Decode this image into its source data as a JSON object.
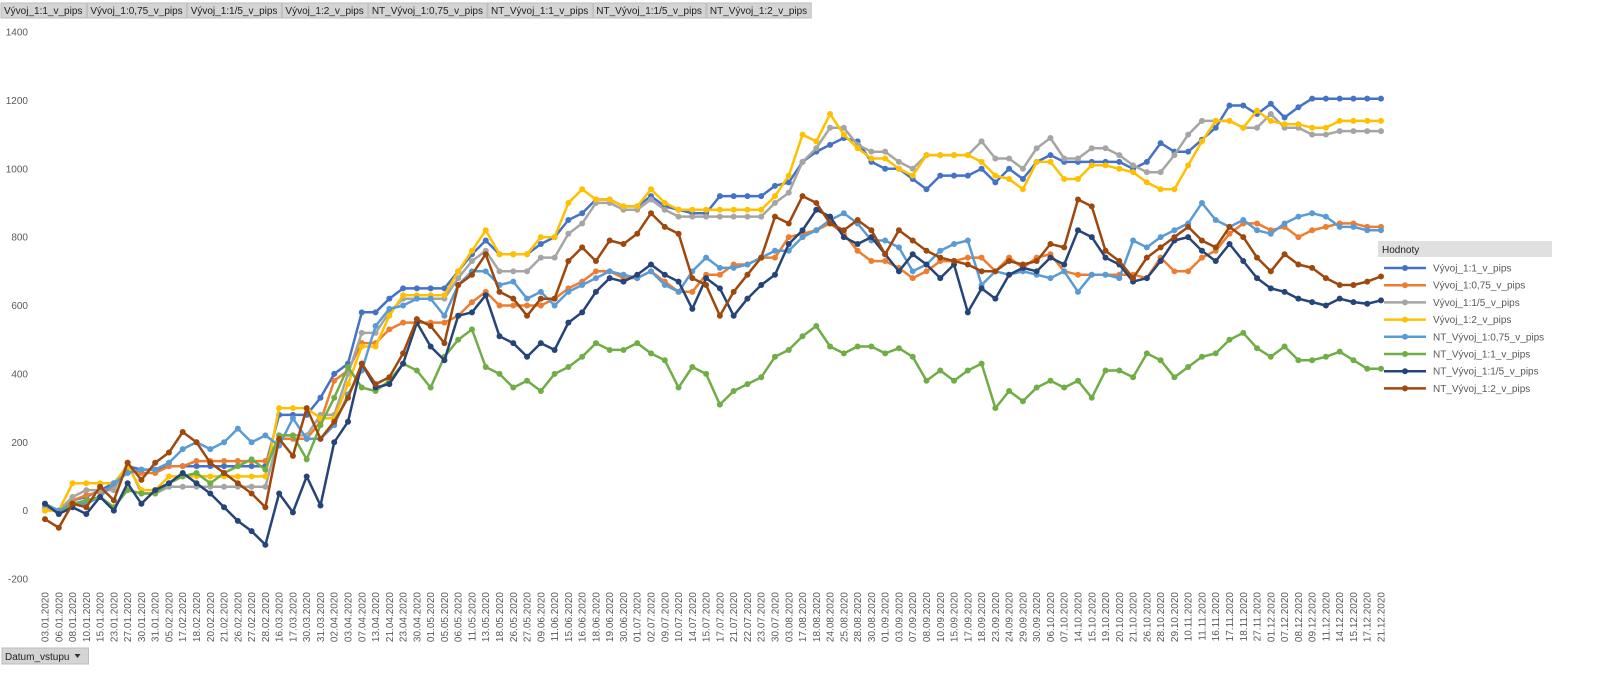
{
  "chart_data": {
    "type": "line",
    "legend_title": "Hodnoty",
    "legend_position": "right",
    "axis_field": "Datum_vstupu",
    "grid": false,
    "ylim": [
      -200,
      1400
    ],
    "yticks": [
      -200,
      0,
      200,
      400,
      600,
      800,
      1000,
      1200,
      1400
    ],
    "categories": [
      "03.01.2020",
      "06.01.2020",
      "08.01.2020",
      "10.01.2020",
      "15.01.2020",
      "23.01.2020",
      "27.01.2020",
      "30.01.2020",
      "31.01.2020",
      "05.02.2020",
      "17.02.2020",
      "18.02.2020",
      "20.02.2020",
      "21.02.2020",
      "26.02.2020",
      "27.02.2020",
      "28.02.2020",
      "16.03.2020",
      "17.03.2020",
      "30.03.2020",
      "31.03.2020",
      "02.04.2020",
      "03.04.2020",
      "07.04.2020",
      "13.04.2020",
      "21.04.2020",
      "23.04.2020",
      "30.04.2020",
      "01.05.2020",
      "05.05.2020",
      "06.05.2020",
      "11.05.2020",
      "13.05.2020",
      "18.05.2020",
      "26.05.2020",
      "27.05.2020",
      "09.06.2020",
      "11.06.2020",
      "15.06.2020",
      "16.06.2020",
      "18.06.2020",
      "19.06.2020",
      "30.06.2020",
      "01.07.2020",
      "02.07.2020",
      "09.07.2020",
      "10.07.2020",
      "14.07.2020",
      "15.07.2020",
      "17.07.2020",
      "21.07.2020",
      "22.07.2020",
      "23.07.2020",
      "30.07.2020",
      "03.08.2020",
      "17.08.2020",
      "18.08.2020",
      "24.08.2020",
      "25.08.2020",
      "28.08.2020",
      "30.08.2020",
      "01.09.2020",
      "03.09.2020",
      "07.09.2020",
      "08.09.2020",
      "10.09.2020",
      "15.09.2020",
      "17.09.2020",
      "18.09.2020",
      "23.09.2020",
      "24.09.2020",
      "29.09.2020",
      "30.09.2020",
      "06.10.2020",
      "07.10.2020",
      "14.10.2020",
      "15.10.2020",
      "19.10.2020",
      "20.10.2020",
      "21.10.2020",
      "26.10.2020",
      "28.10.2020",
      "29.10.2020",
      "10.11.2020",
      "11.11.2020",
      "16.11.2020",
      "17.11.2020",
      "18.11.2020",
      "27.11.2020",
      "01.12.2020",
      "07.12.2020",
      "08.12.2020",
      "09.12.2020",
      "11.12.2020",
      "14.12.2020",
      "15.12.2020",
      "17.12.2020",
      "21.12.2020"
    ],
    "series": [
      {
        "name": "Vývoj_1:1_v_pips",
        "color": "#4472c4",
        "values": [
          10,
          0,
          30,
          40,
          60,
          80,
          130,
          120,
          120,
          130,
          130,
          130,
          130,
          130,
          130,
          130,
          130,
          280,
          280,
          280,
          330,
          400,
          430,
          580,
          580,
          620,
          650,
          650,
          650,
          650,
          700,
          750,
          790,
          750,
          750,
          750,
          780,
          800,
          850,
          870,
          910,
          910,
          890,
          890,
          920,
          890,
          880,
          870,
          870,
          920,
          920,
          920,
          920,
          950,
          960,
          1020,
          1050,
          1070,
          1090,
          1080,
          1020,
          1000,
          1000,
          970,
          940,
          980,
          980,
          980,
          1000,
          960,
          1000,
          970,
          1020,
          1040,
          1020,
          1020,
          1020,
          1020,
          1020,
          1000,
          1020,
          1075,
          1050,
          1050,
          1085,
          1120,
          1185,
          1185,
          1160,
          1190,
          1150,
          1180,
          1205,
          1205,
          1205,
          1205,
          1205,
          1205
        ]
      },
      {
        "name": "Vývoj_1:0,75_v_pips",
        "color": "#ed7d31",
        "values": [
          10,
          0,
          30,
          45,
          55,
          70,
          120,
          110,
          110,
          130,
          130,
          145,
          145,
          145,
          145,
          145,
          145,
          210,
          210,
          210,
          260,
          380,
          410,
          490,
          490,
          530,
          550,
          550,
          550,
          550,
          570,
          610,
          640,
          600,
          600,
          600,
          600,
          620,
          650,
          670,
          700,
          700,
          680,
          680,
          700,
          670,
          640,
          640,
          690,
          690,
          720,
          720,
          740,
          740,
          800,
          810,
          820,
          840,
          810,
          760,
          730,
          730,
          710,
          680,
          700,
          730,
          730,
          740,
          740,
          700,
          740,
          710,
          740,
          750,
          700,
          690,
          690,
          690,
          690,
          690,
          680,
          740,
          700,
          700,
          740,
          760,
          810,
          840,
          840,
          820,
          830,
          800,
          820,
          830,
          840,
          840,
          830,
          830
        ]
      },
      {
        "name": "Vývoj_1:1/5_v_pips",
        "color": "#a5a5a5",
        "values": [
          10,
          0,
          40,
          60,
          60,
          60,
          140,
          50,
          50,
          70,
          70,
          70,
          70,
          70,
          70,
          70,
          70,
          220,
          220,
          220,
          280,
          280,
          400,
          520,
          520,
          580,
          620,
          620,
          620,
          620,
          680,
          730,
          760,
          700,
          700,
          700,
          740,
          740,
          810,
          840,
          900,
          900,
          880,
          880,
          910,
          880,
          860,
          860,
          860,
          860,
          860,
          860,
          860,
          900,
          930,
          1020,
          1060,
          1120,
          1120,
          1070,
          1050,
          1050,
          1020,
          1000,
          1040,
          1040,
          1040,
          1040,
          1080,
          1030,
          1030,
          1000,
          1060,
          1090,
          1030,
          1030,
          1060,
          1060,
          1040,
          1010,
          990,
          990,
          1040,
          1100,
          1140,
          1140,
          1140,
          1120,
          1120,
          1160,
          1120,
          1120,
          1100,
          1100,
          1110,
          1110,
          1110,
          1110
        ]
      },
      {
        "name": "Vývoj_1:2_v_pips",
        "color": "#ffc000",
        "values": [
          0,
          0,
          80,
          80,
          80,
          80,
          130,
          60,
          60,
          100,
          100,
          100,
          100,
          100,
          100,
          100,
          100,
          300,
          300,
          300,
          270,
          270,
          370,
          480,
          480,
          570,
          630,
          630,
          630,
          630,
          700,
          760,
          820,
          750,
          750,
          750,
          800,
          800,
          900,
          940,
          910,
          910,
          890,
          890,
          940,
          900,
          880,
          880,
          880,
          880,
          880,
          880,
          880,
          920,
          980,
          1100,
          1080,
          1160,
          1100,
          1060,
          1030,
          1030,
          1000,
          980,
          1040,
          1040,
          1040,
          1040,
          1020,
          980,
          970,
          940,
          1020,
          1020,
          970,
          970,
          1010,
          1010,
          1000,
          990,
          960,
          940,
          940,
          1010,
          1080,
          1140,
          1140,
          1120,
          1170,
          1140,
          1130,
          1130,
          1120,
          1120,
          1140,
          1140,
          1140,
          1140
        ]
      },
      {
        "name": "NT_Vývoj_1:0,75_v_pips",
        "color": "#5b9bd5",
        "values": [
          20,
          0,
          20,
          20,
          40,
          80,
          110,
          120,
          120,
          140,
          180,
          200,
          180,
          200,
          240,
          200,
          220,
          190,
          270,
          210,
          210,
          250,
          340,
          410,
          540,
          590,
          600,
          620,
          620,
          570,
          660,
          700,
          700,
          660,
          670,
          620,
          640,
          600,
          640,
          660,
          680,
          700,
          690,
          680,
          700,
          660,
          640,
          700,
          740,
          710,
          710,
          720,
          740,
          760,
          760,
          800,
          820,
          850,
          870,
          840,
          790,
          790,
          770,
          700,
          720,
          760,
          780,
          790,
          660,
          700,
          690,
          700,
          690,
          680,
          700,
          640,
          690,
          690,
          680,
          790,
          770,
          800,
          820,
          840,
          900,
          850,
          830,
          850,
          820,
          810,
          840,
          860,
          870,
          860,
          830,
          830,
          820,
          820
        ]
      },
      {
        "name": "NT_Vývoj_1:1_v_pips",
        "color": "#70ad47",
        "values": [
          20,
          -10,
          20,
          30,
          40,
          10,
          60,
          50,
          50,
          80,
          100,
          110,
          80,
          110,
          130,
          150,
          120,
          220,
          220,
          150,
          250,
          330,
          420,
          360,
          350,
          380,
          430,
          410,
          360,
          450,
          500,
          530,
          420,
          400,
          360,
          380,
          350,
          400,
          420,
          450,
          490,
          470,
          470,
          490,
          460,
          440,
          360,
          420,
          400,
          310,
          350,
          370,
          390,
          450,
          470,
          510,
          540,
          480,
          460,
          480,
          480,
          460,
          475,
          450,
          380,
          410,
          380,
          410,
          430,
          300,
          350,
          320,
          360,
          380,
          360,
          380,
          330,
          410,
          410,
          390,
          460,
          440,
          390,
          420,
          450,
          460,
          500,
          520,
          475,
          450,
          480,
          440,
          440,
          450,
          465,
          440,
          415,
          415
        ]
      },
      {
        "name": "NT_Vývoj_1:1/5_v_pips",
        "color": "#264478",
        "values": [
          20,
          -10,
          10,
          -10,
          40,
          0,
          80,
          20,
          60,
          80,
          110,
          80,
          50,
          10,
          -30,
          -60,
          -100,
          50,
          -5,
          100,
          15,
          200,
          260,
          430,
          360,
          370,
          430,
          550,
          480,
          440,
          570,
          580,
          630,
          510,
          490,
          450,
          490,
          470,
          550,
          580,
          640,
          680,
          670,
          690,
          720,
          690,
          670,
          590,
          680,
          650,
          570,
          620,
          660,
          690,
          780,
          820,
          880,
          860,
          800,
          780,
          800,
          750,
          700,
          750,
          720,
          680,
          720,
          580,
          650,
          620,
          690,
          710,
          700,
          740,
          720,
          820,
          800,
          740,
          720,
          670,
          680,
          730,
          790,
          800,
          760,
          730,
          780,
          730,
          680,
          650,
          640,
          620,
          610,
          600,
          620,
          610,
          605,
          615
        ]
      },
      {
        "name": "NT_Vývoj_1:2_v_pips",
        "color": "#9e480e",
        "values": [
          -25,
          -50,
          20,
          10,
          70,
          30,
          140,
          90,
          140,
          170,
          230,
          200,
          140,
          110,
          80,
          50,
          10,
          210,
          160,
          300,
          210,
          260,
          330,
          430,
          370,
          390,
          460,
          560,
          540,
          490,
          660,
          690,
          750,
          640,
          620,
          570,
          620,
          620,
          730,
          770,
          730,
          790,
          780,
          810,
          870,
          830,
          810,
          680,
          660,
          570,
          640,
          690,
          740,
          860,
          840,
          920,
          900,
          840,
          820,
          850,
          820,
          750,
          820,
          790,
          760,
          740,
          730,
          720,
          700,
          700,
          730,
          720,
          730,
          780,
          770,
          910,
          890,
          760,
          730,
          680,
          740,
          770,
          800,
          830,
          790,
          770,
          830,
          800,
          740,
          700,
          750,
          720,
          710,
          680,
          660,
          660,
          670,
          685
        ]
      }
    ]
  }
}
